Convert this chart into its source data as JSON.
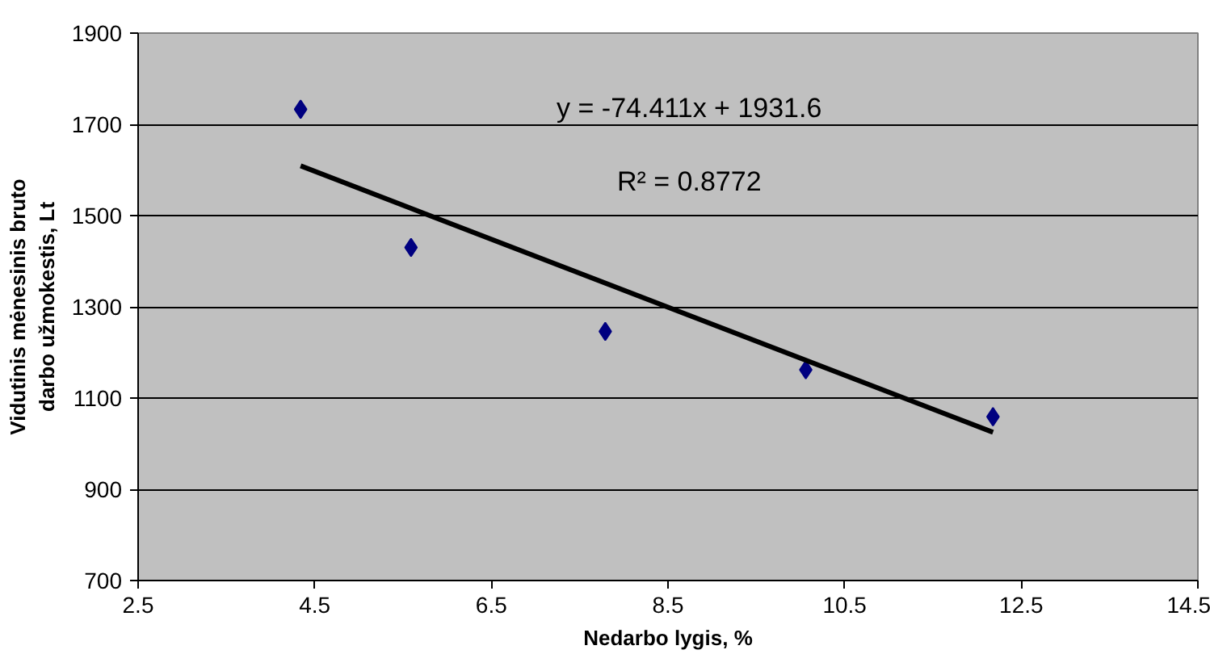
{
  "chart_data": {
    "type": "scatter",
    "xlabel": "Nedarbo lygis, %",
    "ylabel": "Vidutinis mėnesinis bruto\ndarbo užmokestis, Lt",
    "x": [
      4.34,
      5.59,
      7.79,
      10.06,
      12.18
    ],
    "series": [
      {
        "color": "#000080",
        "marker": "diamond",
        "values": [
          1733,
          1430,
          1246,
          1162,
          1059
        ]
      },
      {
        "type": "line",
        "color": "#000000",
        "x": [
          4.34,
          12.18
        ],
        "values": [
          1609,
          1025
        ]
      }
    ],
    "xlim": [
      2.5,
      14.5
    ],
    "xticks": [
      2.5,
      4.5,
      6.5,
      8.5,
      10.5,
      12.5,
      14.5
    ],
    "ylim": [
      700,
      1900
    ],
    "yticks": [
      700,
      900,
      1100,
      1300,
      1500,
      1700,
      1900
    ],
    "grid": "y",
    "annotations": [
      "y = -74.411x + 1931.6",
      "R² = 0.8772"
    ]
  }
}
